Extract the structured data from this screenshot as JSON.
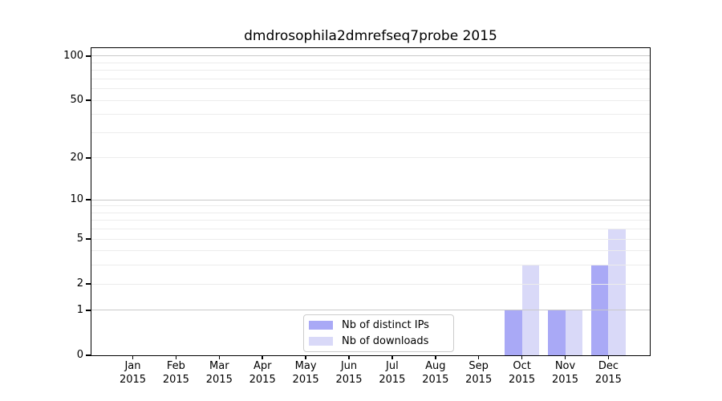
{
  "chart_data": {
    "type": "bar",
    "title": "dmdrosophila2dmrefseq7probe 2015",
    "xlabel": "",
    "ylabel": "",
    "year_label": "2015",
    "categories": [
      "Jan",
      "Feb",
      "Mar",
      "Apr",
      "May",
      "Jun",
      "Jul",
      "Aug",
      "Sep",
      "Oct",
      "Nov",
      "Dec"
    ],
    "series": [
      {
        "name": "Nb of distinct IPs",
        "key": "distinct-ips",
        "color": "#a9a9f6",
        "values": [
          0,
          0,
          0,
          0,
          0,
          0,
          0,
          0,
          0,
          1,
          1,
          3
        ]
      },
      {
        "name": "Nb of downloads",
        "key": "downloads",
        "color": "#d9d9f8",
        "values": [
          0,
          0,
          0,
          0,
          0,
          0,
          0,
          0,
          0,
          3,
          1,
          6
        ]
      }
    ],
    "yticks": [
      0,
      1,
      2,
      5,
      10,
      20,
      50,
      100
    ],
    "ylim": [
      0,
      113
    ],
    "scale": "log10(1+y)",
    "grid": {
      "show": true,
      "orientation": "horizontal",
      "major_values": [
        1,
        10,
        100
      ],
      "minor_values": [
        2,
        3,
        4,
        5,
        6,
        7,
        8,
        9,
        20,
        30,
        40,
        50,
        60,
        70,
        80,
        90
      ],
      "major_color": "#c9c9c9",
      "minor_color": "#ececec"
    },
    "legend": {
      "position": "bottom-center",
      "border_color": "#cccccc",
      "entries": [
        "Nb of distinct IPs",
        "Nb of downloads"
      ]
    },
    "colors": {
      "axis": "#000000",
      "text": "#000000",
      "background": "#ffffff"
    }
  }
}
